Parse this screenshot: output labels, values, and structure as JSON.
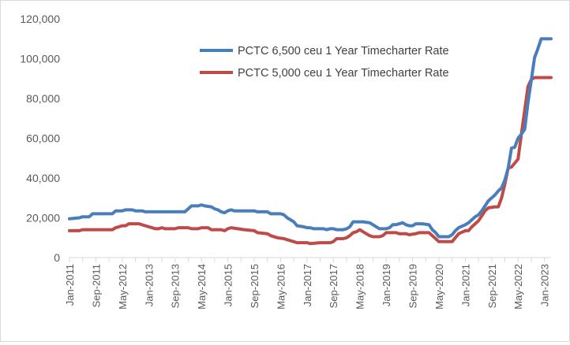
{
  "chart_data": {
    "type": "line",
    "title": "",
    "xlabel": "",
    "ylabel": "",
    "ylim": [
      0,
      120000
    ],
    "y_ticks": [
      0,
      20000,
      40000,
      60000,
      80000,
      100000,
      120000
    ],
    "y_tick_labels": [
      "0",
      "20,000",
      "40,000",
      "60,000",
      "80,000",
      "100,000",
      "120,000"
    ],
    "x_tick_labels": [
      "Jan-2011",
      "Sep-2011",
      "May-2012",
      "Jan-2013",
      "Sep-2013",
      "May-2014",
      "Jan-2015",
      "Sep-2015",
      "May-2016",
      "Jan-2017",
      "Sep-2017",
      "May-2018",
      "Jan-2019",
      "Sep-2019",
      "May-2020",
      "Jan-2021",
      "Sep-2021",
      "May-2022",
      "Jan-2023"
    ],
    "x_tick_months": [
      "2011-01",
      "2011-09",
      "2012-05",
      "2013-01",
      "2013-09",
      "2014-05",
      "2015-01",
      "2015-09",
      "2016-05",
      "2017-01",
      "2017-09",
      "2018-05",
      "2019-01",
      "2019-09",
      "2020-05",
      "2021-01",
      "2021-09",
      "2022-05",
      "2023-01"
    ],
    "x_range": [
      "2011-01",
      "2023-03"
    ],
    "grid": false,
    "legend_position": "top-right",
    "series": [
      {
        "name": "PCTC 6,500 ceu 1 Year Timecharter Rate",
        "color": "#4a7ebb",
        "points": [
          [
            "2011-01",
            19500
          ],
          [
            "2011-04",
            20000
          ],
          [
            "2011-05",
            20500
          ],
          [
            "2011-07",
            20500
          ],
          [
            "2011-08",
            22000
          ],
          [
            "2012-02",
            22000
          ],
          [
            "2012-03",
            23500
          ],
          [
            "2012-05",
            23500
          ],
          [
            "2012-06",
            24000
          ],
          [
            "2012-08",
            24000
          ],
          [
            "2012-09",
            23500
          ],
          [
            "2012-11",
            23500
          ],
          [
            "2012-12",
            23000
          ],
          [
            "2013-06",
            23000
          ],
          [
            "2013-09",
            23000
          ],
          [
            "2013-12",
            23000
          ],
          [
            "2014-01",
            24500
          ],
          [
            "2014-02",
            26000
          ],
          [
            "2014-04",
            26000
          ],
          [
            "2014-05",
            26500
          ],
          [
            "2014-06",
            26000
          ],
          [
            "2014-08",
            25500
          ],
          [
            "2014-09",
            24500
          ],
          [
            "2014-10",
            24000
          ],
          [
            "2014-11",
            23000
          ],
          [
            "2014-12",
            22500
          ],
          [
            "2015-01",
            23500
          ],
          [
            "2015-02",
            24000
          ],
          [
            "2015-03",
            23500
          ],
          [
            "2015-09",
            23500
          ],
          [
            "2015-10",
            23000
          ],
          [
            "2016-01",
            23000
          ],
          [
            "2016-02",
            22000
          ],
          [
            "2016-05",
            22000
          ],
          [
            "2016-06",
            21500
          ],
          [
            "2016-07",
            20000
          ],
          [
            "2016-08",
            19000
          ],
          [
            "2016-09",
            18000
          ],
          [
            "2016-10",
            16000
          ],
          [
            "2016-12",
            15500
          ],
          [
            "2017-01",
            15000
          ],
          [
            "2017-02",
            15000
          ],
          [
            "2017-03",
            14500
          ],
          [
            "2017-06",
            14500
          ],
          [
            "2017-07",
            14000
          ],
          [
            "2017-08",
            14500
          ],
          [
            "2017-09",
            14500
          ],
          [
            "2017-10",
            14000
          ],
          [
            "2017-12",
            14000
          ],
          [
            "2018-01",
            14500
          ],
          [
            "2018-02",
            15500
          ],
          [
            "2018-03",
            18000
          ],
          [
            "2018-06",
            18000
          ],
          [
            "2018-08",
            17500
          ],
          [
            "2018-09",
            16500
          ],
          [
            "2018-10",
            15500
          ],
          [
            "2018-11",
            14500
          ],
          [
            "2019-01",
            14500
          ],
          [
            "2019-02",
            15000
          ],
          [
            "2019-03",
            16500
          ],
          [
            "2019-04",
            16500
          ],
          [
            "2019-05",
            17000
          ],
          [
            "2019-06",
            17500
          ],
          [
            "2019-07",
            16500
          ],
          [
            "2019-08",
            16000
          ],
          [
            "2019-09",
            16000
          ],
          [
            "2019-10",
            17000
          ],
          [
            "2019-12",
            17000
          ],
          [
            "2020-02",
            16500
          ],
          [
            "2020-03",
            14000
          ],
          [
            "2020-04",
            12500
          ],
          [
            "2020-05",
            10500
          ],
          [
            "2020-08",
            10500
          ],
          [
            "2020-09",
            11500
          ],
          [
            "2020-10",
            13500
          ],
          [
            "2020-11",
            15000
          ],
          [
            "2021-01",
            16500
          ],
          [
            "2021-02",
            17500
          ],
          [
            "2021-03",
            19000
          ],
          [
            "2021-04",
            20500
          ],
          [
            "2021-05",
            21500
          ],
          [
            "2021-06",
            23500
          ],
          [
            "2021-07",
            26000
          ],
          [
            "2021-08",
            28500
          ],
          [
            "2021-09",
            30000
          ],
          [
            "2021-10",
            31500
          ],
          [
            "2021-11",
            33500
          ],
          [
            "2021-12",
            35000
          ],
          [
            "2022-01",
            39000
          ],
          [
            "2022-02",
            45000
          ],
          [
            "2022-03",
            55000
          ],
          [
            "2022-04",
            55500
          ],
          [
            "2022-05",
            60000
          ],
          [
            "2022-06",
            62000
          ],
          [
            "2022-07",
            64500
          ],
          [
            "2022-08",
            78000
          ],
          [
            "2022-09",
            89000
          ],
          [
            "2022-10",
            100500
          ],
          [
            "2022-11",
            105000
          ],
          [
            "2022-12",
            110000
          ],
          [
            "2023-03",
            110000
          ]
        ]
      },
      {
        "name": "PCTC 5,000 ceu 1 Year Timecharter Rate",
        "color": "#be4b48",
        "points": [
          [
            "2011-01",
            13500
          ],
          [
            "2011-04",
            13500
          ],
          [
            "2011-05",
            14000
          ],
          [
            "2012-02",
            14000
          ],
          [
            "2012-03",
            15000
          ],
          [
            "2012-04",
            15500
          ],
          [
            "2012-05",
            16000
          ],
          [
            "2012-06",
            16000
          ],
          [
            "2012-07",
            17000
          ],
          [
            "2012-10",
            17000
          ],
          [
            "2012-11",
            16500
          ],
          [
            "2012-12",
            16000
          ],
          [
            "2013-02",
            15000
          ],
          [
            "2013-03",
            14500
          ],
          [
            "2013-04",
            14500
          ],
          [
            "2013-05",
            15000
          ],
          [
            "2013-06",
            14500
          ],
          [
            "2013-09",
            14500
          ],
          [
            "2013-10",
            15000
          ],
          [
            "2014-01",
            15000
          ],
          [
            "2014-02",
            14500
          ],
          [
            "2014-04",
            14500
          ],
          [
            "2014-05",
            15000
          ],
          [
            "2014-07",
            15000
          ],
          [
            "2014-08",
            14000
          ],
          [
            "2014-11",
            14000
          ],
          [
            "2014-12",
            13500
          ],
          [
            "2015-01",
            14500
          ],
          [
            "2015-02",
            15000
          ],
          [
            "2015-04",
            14500
          ],
          [
            "2015-06",
            14000
          ],
          [
            "2015-09",
            13500
          ],
          [
            "2015-10",
            12500
          ],
          [
            "2016-01",
            12000
          ],
          [
            "2016-02",
            11000
          ],
          [
            "2016-04",
            10000
          ],
          [
            "2016-06",
            9500
          ],
          [
            "2016-07",
            9000
          ],
          [
            "2016-09",
            8000
          ],
          [
            "2016-10",
            7500
          ],
          [
            "2017-01",
            7500
          ],
          [
            "2017-02",
            7000
          ],
          [
            "2017-05",
            7500
          ],
          [
            "2017-08",
            7500
          ],
          [
            "2017-09",
            8000
          ],
          [
            "2017-10",
            9500
          ],
          [
            "2017-12",
            9500
          ],
          [
            "2018-01",
            10000
          ],
          [
            "2018-02",
            11000
          ],
          [
            "2018-03",
            12500
          ],
          [
            "2018-04",
            13000
          ],
          [
            "2018-05",
            14000
          ],
          [
            "2018-06",
            13000
          ],
          [
            "2018-07",
            12000
          ],
          [
            "2018-08",
            11000
          ],
          [
            "2018-09",
            10500
          ],
          [
            "2018-11",
            10500
          ],
          [
            "2018-12",
            11000
          ],
          [
            "2019-01",
            12500
          ],
          [
            "2019-04",
            12500
          ],
          [
            "2019-05",
            12000
          ],
          [
            "2019-07",
            12000
          ],
          [
            "2019-08",
            11500
          ],
          [
            "2019-10",
            12000
          ],
          [
            "2019-11",
            12500
          ],
          [
            "2020-02",
            12500
          ],
          [
            "2020-03",
            11000
          ],
          [
            "2020-04",
            9500
          ],
          [
            "2020-05",
            8000
          ],
          [
            "2020-09",
            8000
          ],
          [
            "2020-10",
            10000
          ],
          [
            "2020-11",
            12000
          ],
          [
            "2021-01",
            13500
          ],
          [
            "2021-02",
            13500
          ],
          [
            "2021-03",
            15500
          ],
          [
            "2021-04",
            17000
          ],
          [
            "2021-05",
            18500
          ],
          [
            "2021-06",
            21000
          ],
          [
            "2021-07",
            23500
          ],
          [
            "2021-08",
            25000
          ],
          [
            "2021-10",
            25500
          ],
          [
            "2021-11",
            25500
          ],
          [
            "2021-12",
            30000
          ],
          [
            "2022-01",
            37000
          ],
          [
            "2022-02",
            45000
          ],
          [
            "2022-03",
            45500
          ],
          [
            "2022-04",
            47500
          ],
          [
            "2022-05",
            49500
          ],
          [
            "2022-06",
            62000
          ],
          [
            "2022-07",
            74000
          ],
          [
            "2022-08",
            86000
          ],
          [
            "2022-09",
            89500
          ],
          [
            "2022-10",
            90500
          ],
          [
            "2023-03",
            90500
          ]
        ]
      }
    ]
  }
}
